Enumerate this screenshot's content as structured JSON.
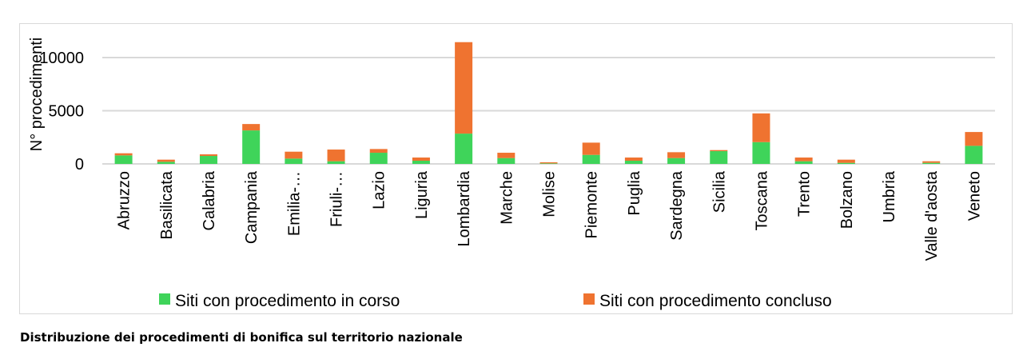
{
  "caption": "Distribuzione dei procedimenti di bonifica sul territorio nazionale",
  "colors": {
    "in_corso": "#3fd45a",
    "concluso": "#ef7330",
    "grid": "#d9d9d9"
  },
  "chart_data": {
    "type": "bar",
    "stacked": true,
    "title": "",
    "xlabel": "",
    "ylabel": "N° procedimenti",
    "ylim": [
      0,
      11500
    ],
    "yticks": [
      0,
      5000,
      10000
    ],
    "ytick_labels": [
      "0",
      "5000",
      "10000"
    ],
    "grid": true,
    "legend_position": "bottom",
    "categories": [
      "Abruzzo",
      "Basilicata",
      "Calabria",
      "Campania",
      "Emilia-…",
      "Friuli-…",
      "Lazio",
      "Liguria",
      "Lombardia",
      "Marche",
      "Molise",
      "Piemonte",
      "Puglia",
      "Sardegna",
      "Sicilia",
      "Toscana",
      "Trento",
      "Bolzano",
      "Umbria",
      "Valle d'aosta",
      "Veneto"
    ],
    "series": [
      {
        "name": "Siti con procedimento in corso",
        "values": [
          800,
          200,
          750,
          3150,
          500,
          250,
          1050,
          300,
          2850,
          550,
          50,
          850,
          300,
          550,
          1200,
          2050,
          250,
          100,
          0,
          100,
          1700
        ]
      },
      {
        "name": "Siti con procedimento concluso",
        "values": [
          200,
          200,
          150,
          600,
          650,
          1100,
          350,
          300,
          8600,
          500,
          100,
          1150,
          300,
          550,
          100,
          2700,
          350,
          300,
          0,
          150,
          1300
        ]
      }
    ]
  }
}
